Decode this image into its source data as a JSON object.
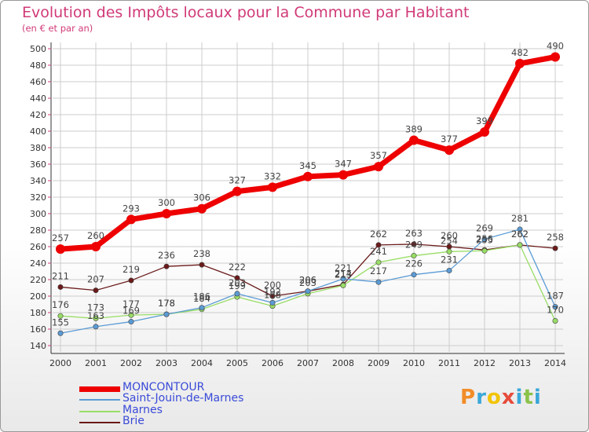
{
  "title": "Evolution des Impôts locaux pour la Commune par Habitant",
  "subtitle": "(en € et par an)",
  "logo": "Proxiti",
  "colors": {
    "title": "#d03a78",
    "grid": "#cccccc",
    "axis": "#333333",
    "legend_text": "#3a4bd8"
  },
  "chart_data": {
    "type": "line",
    "title": "Evolution des Impôts locaux pour la Commune par Habitant",
    "ylabel": "(en € et par an)",
    "xlabel": "",
    "ylim": [
      140,
      500
    ],
    "yticks": [
      140,
      160,
      180,
      200,
      220,
      240,
      260,
      280,
      300,
      320,
      340,
      360,
      380,
      400,
      420,
      440,
      460,
      480,
      500
    ],
    "categories": [
      "2000",
      "2001",
      "2002",
      "2003",
      "2004",
      "2005",
      "2006",
      "2007",
      "2008",
      "2009",
      "2010",
      "2011",
      "2012",
      "2013",
      "2014"
    ],
    "series": [
      {
        "name": "MONCONTOUR",
        "color": "#ee0000",
        "values": [
          257,
          260,
          293,
          300,
          306,
          327,
          332,
          345,
          347,
          357,
          389,
          377,
          399,
          482,
          490
        ]
      },
      {
        "name": "Saint-Jouin-de-Marnes",
        "color": "#5b9bd5",
        "values": [
          155,
          163,
          169,
          178,
          186,
          203,
          192,
          206,
          221,
          217,
          226,
          231,
          269,
          281,
          187
        ]
      },
      {
        "name": "Marnes",
        "color": "#99dd66",
        "values": [
          176,
          173,
          177,
          178,
          184,
          199,
          188,
          203,
          213,
          241,
          249,
          254,
          255,
          262,
          170
        ]
      },
      {
        "name": "Brie",
        "color": "#6b1a1a",
        "values": [
          211,
          207,
          219,
          236,
          238,
          222,
          200,
          206,
          214,
          262,
          263,
          260,
          256,
          262,
          258
        ]
      }
    ]
  }
}
